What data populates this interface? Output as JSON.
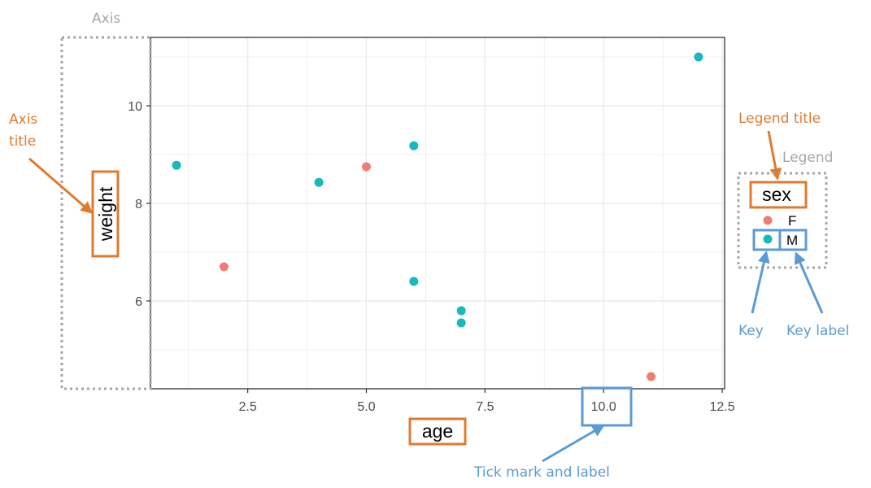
{
  "colors": {
    "female": "#f07c74",
    "male": "#17b8be",
    "orange": "#e07b2e",
    "blue": "#5b9bd5",
    "gray": "#a6a6a6",
    "grid": "#ebebeb"
  },
  "chart_data": {
    "type": "scatter",
    "xlabel": "age",
    "ylabel": "weight",
    "xlim": [
      0.45,
      12.55
    ],
    "ylim": [
      4.2,
      11.4
    ],
    "x_ticks": [
      "2.5",
      "5.0",
      "7.5",
      "10.0",
      "12.5"
    ],
    "y_ticks": [
      "6",
      "8",
      "10"
    ],
    "x_tick_values": [
      2.5,
      5.0,
      7.5,
      10.0,
      12.5
    ],
    "y_tick_values": [
      6,
      8,
      10
    ],
    "grid": true,
    "legend": {
      "title": "sex",
      "placement": "right",
      "entries": [
        "F",
        "M"
      ]
    },
    "series": [
      {
        "name": "F",
        "color": "#f07c74",
        "points": [
          [
            2,
            6.7
          ],
          [
            5,
            8.75
          ],
          [
            11,
            4.45
          ]
        ]
      },
      {
        "name": "M",
        "color": "#17b8be",
        "points": [
          [
            1,
            8.78
          ],
          [
            4,
            8.43
          ],
          [
            6,
            9.18
          ],
          [
            6,
            6.4
          ],
          [
            7,
            5.8
          ],
          [
            7,
            5.55
          ],
          [
            12,
            11.0
          ]
        ]
      }
    ]
  },
  "annotations": {
    "axis": "Axis",
    "axis_title_line1": "Axis",
    "axis_title_line2": "title",
    "legend_title": "Legend title",
    "legend": "Legend",
    "key": "Key",
    "key_label": "Key label",
    "tick_mark_and_label": "Tick mark and label"
  }
}
